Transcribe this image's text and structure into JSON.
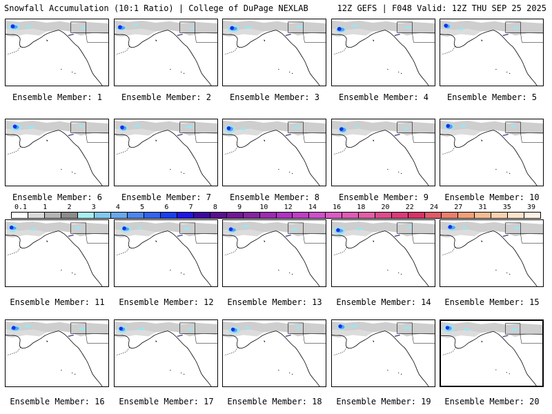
{
  "header": {
    "left": "Snowfall Accumulation (10:1 Ratio) | College of DuPage NEXLAB",
    "right": "12Z GEFS | F048 Valid: 12Z THU SEP 25 2025"
  },
  "panels": [
    {
      "label": "Ensemble Member: 1"
    },
    {
      "label": "Ensemble Member: 2"
    },
    {
      "label": "Ensemble Member: 3"
    },
    {
      "label": "Ensemble Member: 4"
    },
    {
      "label": "Ensemble Member: 5"
    },
    {
      "label": "Ensemble Member: 6"
    },
    {
      "label": "Ensemble Member: 7"
    },
    {
      "label": "Ensemble Member: 8"
    },
    {
      "label": "Ensemble Member: 9"
    },
    {
      "label": "Ensemble Member: 10"
    },
    {
      "label": "Ensemble Member: 11"
    },
    {
      "label": "Ensemble Member: 12"
    },
    {
      "label": "Ensemble Member: 13"
    },
    {
      "label": "Ensemble Member: 14"
    },
    {
      "label": "Ensemble Member: 15"
    },
    {
      "label": "Ensemble Member: 16"
    },
    {
      "label": "Ensemble Member: 17"
    },
    {
      "label": "Ensemble Member: 18"
    },
    {
      "label": "Ensemble Member: 19"
    },
    {
      "label": "Ensemble Member: 20",
      "selected": true
    }
  ],
  "colorbar": {
    "labels": [
      "0.1",
      "1",
      "2",
      "3",
      "4",
      "5",
      "6",
      "7",
      "8",
      "9",
      "10",
      "12",
      "14",
      "16",
      "18",
      "20",
      "22",
      "24",
      "27",
      "31",
      "35",
      "39"
    ],
    "colors": [
      "#ffffff",
      "#d9d9d9",
      "#b4b4b4",
      "#8c8c8c",
      "#a8eef0",
      "#82c8ec",
      "#6aa8ec",
      "#4e86ec",
      "#3264ec",
      "#1a40ec",
      "#2016e0",
      "#3c0a9e",
      "#58108c",
      "#701894",
      "#8424a0",
      "#9a2cb0",
      "#ac34c0",
      "#bc40c4",
      "#cc50c8",
      "#d85cc4",
      "#dc5cb4",
      "#e060a4",
      "#dc4c8c",
      "#d83c78",
      "#d43468",
      "#e05a68",
      "#e8806c",
      "#f0a078",
      "#f4bc94",
      "#f8d2b0",
      "#fbe4cc",
      "#fdf2e4"
    ]
  },
  "colors": {
    "land_gray": "#bdbdbd",
    "coast": "#000000",
    "border": "#4a3a8a",
    "snow_light": "#9fe3f0",
    "snow_mid": "#5aa0f0",
    "snow_heavy": "#1a2ee8"
  }
}
